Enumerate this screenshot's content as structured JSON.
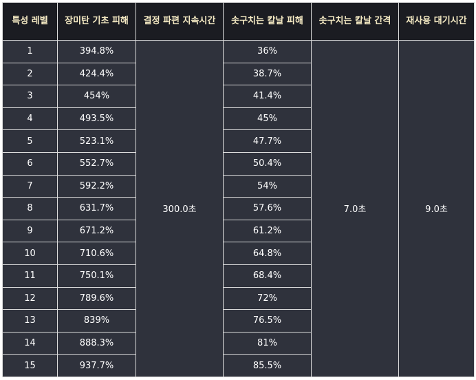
{
  "headers": [
    "특성 레벨",
    "장미탄 기초 피해",
    "결정 파편 지속시간",
    "솟구치는 칼날 피해",
    "솟구치는 칼날 간격",
    "재사용 대기시간"
  ],
  "merged": {
    "crystal_duration": "300.0초",
    "blade_interval": "7.0초",
    "cooldown": "9.0초"
  },
  "rows": [
    {
      "level": "1",
      "rose_damage": "394.8%",
      "blade_damage": "36%"
    },
    {
      "level": "2",
      "rose_damage": "424.4%",
      "blade_damage": "38.7%"
    },
    {
      "level": "3",
      "rose_damage": "454%",
      "blade_damage": "41.4%"
    },
    {
      "level": "4",
      "rose_damage": "493.5%",
      "blade_damage": "45%"
    },
    {
      "level": "5",
      "rose_damage": "523.1%",
      "blade_damage": "47.7%"
    },
    {
      "level": "6",
      "rose_damage": "552.7%",
      "blade_damage": "50.4%"
    },
    {
      "level": "7",
      "rose_damage": "592.2%",
      "blade_damage": "54%"
    },
    {
      "level": "8",
      "rose_damage": "631.7%",
      "blade_damage": "57.6%"
    },
    {
      "level": "9",
      "rose_damage": "671.2%",
      "blade_damage": "61.2%"
    },
    {
      "level": "10",
      "rose_damage": "710.6%",
      "blade_damage": "64.8%"
    },
    {
      "level": "11",
      "rose_damage": "750.1%",
      "blade_damage": "68.4%"
    },
    {
      "level": "12",
      "rose_damage": "789.6%",
      "blade_damage": "72%"
    },
    {
      "level": "13",
      "rose_damage": "839%",
      "blade_damage": "76.5%"
    },
    {
      "level": "14",
      "rose_damage": "888.3%",
      "blade_damage": "81%"
    },
    {
      "level": "15",
      "rose_damage": "937.7%",
      "blade_damage": "85.5%"
    }
  ],
  "colors": {
    "header_bg": "#1b1c22",
    "header_text": "#f3e8c2",
    "cell_bg": "#2f323c",
    "cell_text": "#ffffff",
    "border": "#dcdcdc"
  }
}
